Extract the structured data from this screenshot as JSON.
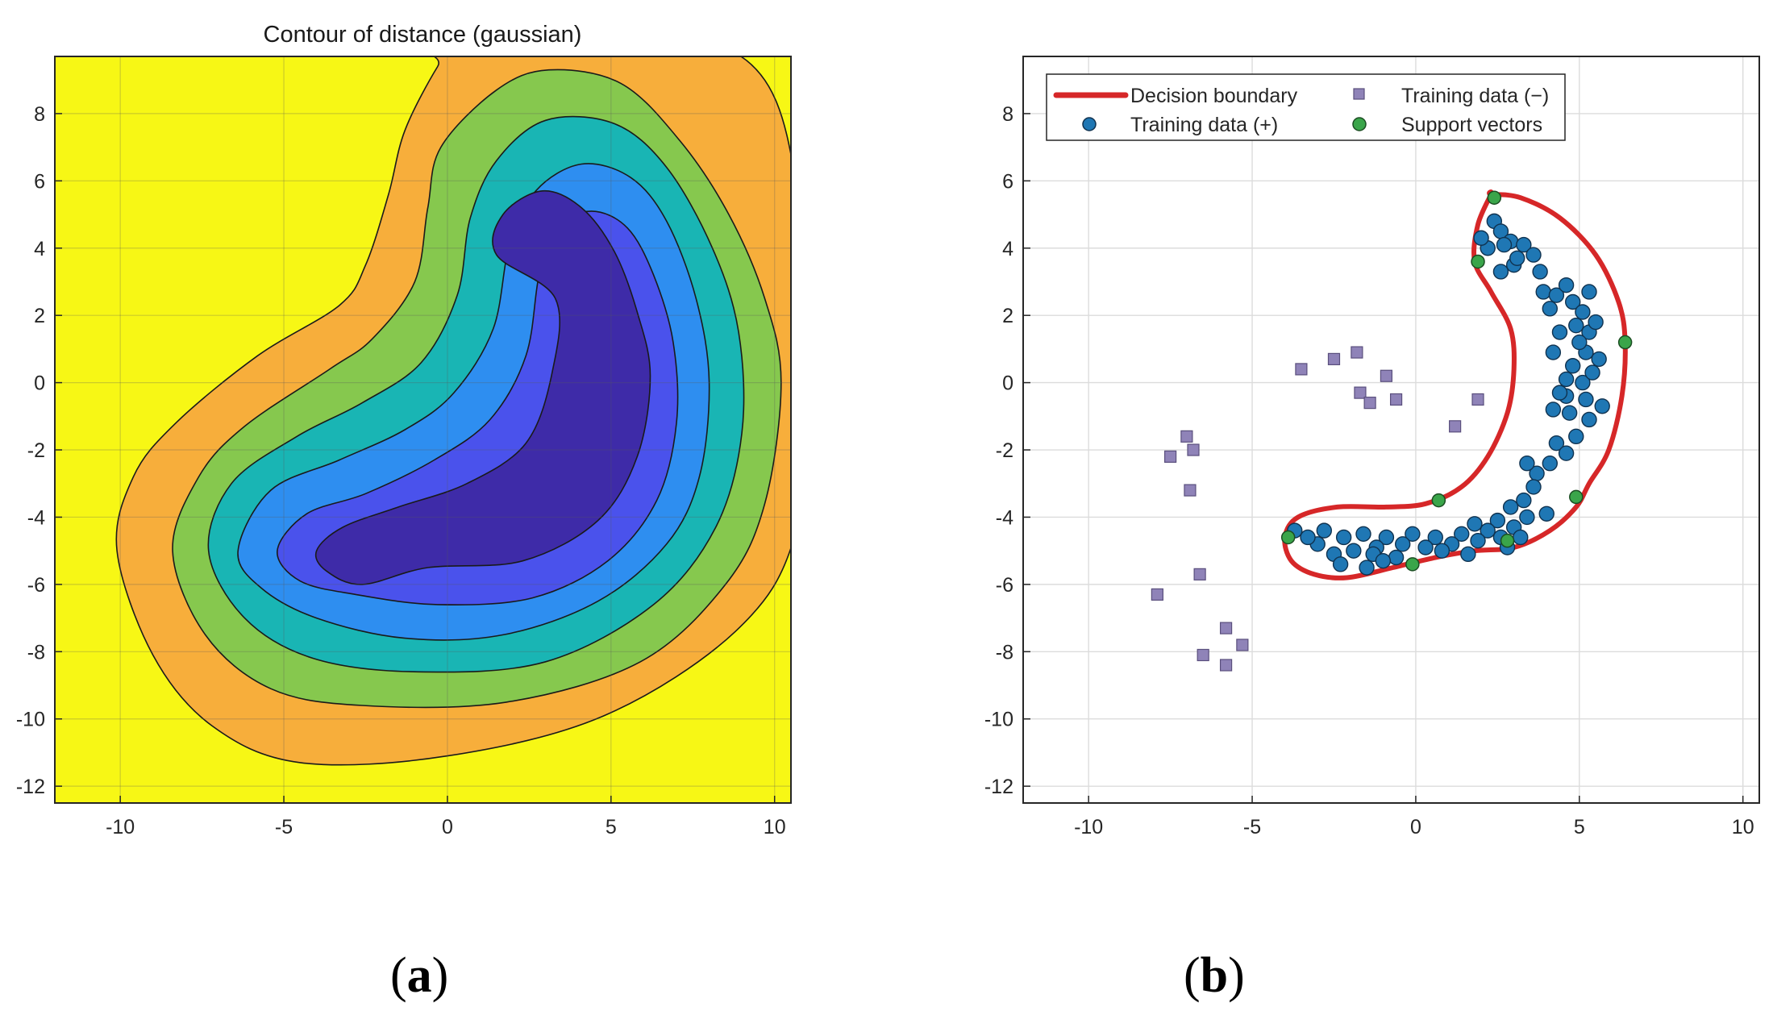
{
  "chart_data": [
    {
      "type": "contour",
      "panel": "(a)",
      "title": "Contour of distance (gaussian)",
      "xlim": [
        -12,
        10.5
      ],
      "ylim": [
        -12.5,
        9.7
      ],
      "xticks": [
        -10,
        -5,
        0,
        5,
        10
      ],
      "yticks": [
        8,
        6,
        4,
        2,
        0,
        -2,
        -4,
        -6,
        -8,
        -10,
        -12
      ],
      "grid": true,
      "level_colors": [
        "#f7f715",
        "#f7ae3b",
        "#86c84e",
        "#19b5b4",
        "#2e8ef0",
        "#4a52ec",
        "#3e2ba8"
      ],
      "levels": [
        {
          "level": 1,
          "points": [
            [
              -10.1,
              -5
            ],
            [
              -9.6,
              -2.8
            ],
            [
              -8.3,
              -1.2
            ],
            [
              -5.8,
              0.8
            ],
            [
              -3.3,
              2.3
            ],
            [
              -2.5,
              3.5
            ],
            [
              -1.8,
              5.6
            ],
            [
              -1.3,
              7.5
            ],
            [
              -0.3,
              9.4
            ],
            [
              0.2,
              9.9
            ],
            [
              8.6,
              9.9
            ],
            [
              10.8,
              5.3
            ],
            [
              11.0,
              0
            ],
            [
              10.6,
              -4.6
            ],
            [
              8.8,
              -7.4
            ],
            [
              4.8,
              -9.9
            ],
            [
              0,
              -11.1
            ],
            [
              -4.5,
              -11.3
            ],
            [
              -7.2,
              -10.2
            ],
            [
              -9,
              -8.1
            ]
          ]
        },
        {
          "level": 2,
          "points": [
            [
              -8.4,
              -5
            ],
            [
              -7.6,
              -2.8
            ],
            [
              -6.2,
              -1.3
            ],
            [
              -3.6,
              0.4
            ],
            [
              -2.3,
              1.3
            ],
            [
              -1.0,
              3.0
            ],
            [
              -0.6,
              5.2
            ],
            [
              -0.2,
              7.0
            ],
            [
              1.5,
              8.7
            ],
            [
              3.1,
              9.3
            ],
            [
              5.3,
              8.9
            ],
            [
              7.1,
              7.2
            ],
            [
              8.6,
              5.0
            ],
            [
              9.7,
              2.5
            ],
            [
              10.2,
              0
            ],
            [
              9.7,
              -3.6
            ],
            [
              8.5,
              -6
            ],
            [
              5.9,
              -8.3
            ],
            [
              1.8,
              -9.5
            ],
            [
              -2.6,
              -9.6
            ],
            [
              -5.4,
              -9.1
            ],
            [
              -7.4,
              -7.5
            ]
          ]
        },
        {
          "level": 3,
          "points": [
            [
              -7.3,
              -5
            ],
            [
              -6.6,
              -3.0
            ],
            [
              -4.6,
              -1.6
            ],
            [
              -2.6,
              -0.6
            ],
            [
              -0.8,
              0.6
            ],
            [
              0.3,
              2.6
            ],
            [
              0.7,
              4.9
            ],
            [
              1.5,
              6.6
            ],
            [
              3.0,
              7.8
            ],
            [
              5.1,
              7.7
            ],
            [
              6.7,
              6.4
            ],
            [
              8.1,
              4.0
            ],
            [
              8.9,
              1.5
            ],
            [
              9.0,
              -1.5
            ],
            [
              8.2,
              -4.3
            ],
            [
              6.3,
              -6.6
            ],
            [
              3.0,
              -8.3
            ],
            [
              -0.9,
              -8.6
            ],
            [
              -4.1,
              -8.2
            ],
            [
              -6.2,
              -7.0
            ]
          ]
        },
        {
          "level": 4,
          "points": [
            [
              -6.4,
              -5
            ],
            [
              -5.4,
              -3.2
            ],
            [
              -3.3,
              -2.3
            ],
            [
              -1.3,
              -1.4
            ],
            [
              0.2,
              -0.3
            ],
            [
              1.4,
              1.6
            ],
            [
              1.9,
              4.1
            ],
            [
              2.7,
              5.7
            ],
            [
              4.1,
              6.5
            ],
            [
              5.6,
              6.1
            ],
            [
              6.7,
              4.8
            ],
            [
              7.6,
              2.5
            ],
            [
              8.0,
              0
            ],
            [
              7.7,
              -2.8
            ],
            [
              6.7,
              -4.8
            ],
            [
              4.6,
              -6.5
            ],
            [
              1.7,
              -7.5
            ],
            [
              -1.3,
              -7.6
            ],
            [
              -4.0,
              -7.0
            ],
            [
              -5.7,
              -6.1
            ]
          ]
        },
        {
          "level": 5,
          "points": [
            [
              -5.2,
              -5
            ],
            [
              -4.3,
              -3.9
            ],
            [
              -2.5,
              -3.3
            ],
            [
              -0.4,
              -2.3
            ],
            [
              1.3,
              -1.1
            ],
            [
              2.4,
              0.8
            ],
            [
              2.8,
              3.2
            ],
            [
              3.3,
              4.6
            ],
            [
              4.4,
              5.1
            ],
            [
              5.5,
              4.6
            ],
            [
              6.3,
              3.2
            ],
            [
              6.9,
              1.2
            ],
            [
              7.0,
              -1.2
            ],
            [
              6.4,
              -3.5
            ],
            [
              4.9,
              -5.3
            ],
            [
              2.6,
              -6.4
            ],
            [
              -0.3,
              -6.6
            ],
            [
              -2.8,
              -6.3
            ],
            [
              -4.5,
              -5.9
            ]
          ]
        },
        {
          "level": 6,
          "points": [
            [
              -4.0,
              -5
            ],
            [
              -3.2,
              -4.3
            ],
            [
              -1.5,
              -3.7
            ],
            [
              0.6,
              -3.0
            ],
            [
              2.4,
              -1.8
            ],
            [
              3.2,
              0.3
            ],
            [
              3.3,
              2.5
            ],
            [
              1.5,
              3.8
            ],
            [
              1.7,
              5.0
            ],
            [
              2.9,
              5.7
            ],
            [
              4.1,
              5.2
            ],
            [
              5.1,
              3.9
            ],
            [
              5.8,
              2.1
            ],
            [
              6.2,
              0.2
            ],
            [
              5.8,
              -2.2
            ],
            [
              4.6,
              -4.1
            ],
            [
              2.3,
              -5.3
            ],
            [
              -0.6,
              -5.5
            ],
            [
              -2.6,
              -6.0
            ],
            [
              -3.7,
              -5.6
            ]
          ]
        }
      ]
    },
    {
      "type": "scatter",
      "panel": "(b)",
      "title": "",
      "xlim": [
        -12,
        10.5
      ],
      "ylim": [
        -12.5,
        9.7
      ],
      "xticks": [
        -10,
        -5,
        0,
        5,
        10
      ],
      "yticks": [
        8,
        6,
        4,
        2,
        0,
        -2,
        -4,
        -6,
        -8,
        -10,
        -12
      ],
      "grid": true,
      "legend_position": "top-left",
      "legend": [
        "Decision boundary",
        "Training data (−)",
        "Training data (+)",
        "Support vectors"
      ],
      "series": [
        {
          "name": "Training data (−)",
          "marker": "square",
          "color": "#8f83b8",
          "points": [
            [
              -3.5,
              0.4
            ],
            [
              -2.5,
              0.7
            ],
            [
              -1.8,
              0.9
            ],
            [
              -0.9,
              0.2
            ],
            [
              -1.7,
              -0.3
            ],
            [
              -1.4,
              -0.6
            ],
            [
              -0.6,
              -0.5
            ],
            [
              1.2,
              -1.3
            ],
            [
              1.9,
              -0.5
            ],
            [
              -7.0,
              -1.6
            ],
            [
              -7.5,
              -2.2
            ],
            [
              -6.8,
              -2.0
            ],
            [
              -6.9,
              -3.2
            ],
            [
              -6.6,
              -5.7
            ],
            [
              -7.9,
              -6.3
            ],
            [
              -5.8,
              -7.3
            ],
            [
              -6.5,
              -8.1
            ],
            [
              -5.3,
              -7.8
            ],
            [
              -5.8,
              -8.4
            ]
          ]
        },
        {
          "name": "Training data (+)",
          "marker": "circle",
          "color": "#1f77b4",
          "points": [
            [
              2.4,
              4.8
            ],
            [
              2.6,
              4.5
            ],
            [
              2.9,
              4.2
            ],
            [
              2.2,
              4.0
            ],
            [
              3.3,
              4.1
            ],
            [
              3.6,
              3.8
            ],
            [
              3.0,
              3.5
            ],
            [
              2.6,
              3.3
            ],
            [
              3.8,
              3.3
            ],
            [
              3.9,
              2.7
            ],
            [
              4.3,
              2.6
            ],
            [
              4.1,
              2.2
            ],
            [
              4.8,
              2.4
            ],
            [
              5.1,
              2.1
            ],
            [
              4.9,
              1.7
            ],
            [
              4.4,
              1.5
            ],
            [
              5.3,
              1.5
            ],
            [
              4.2,
              0.9
            ],
            [
              5.2,
              0.9
            ],
            [
              4.8,
              0.5
            ],
            [
              5.6,
              0.7
            ],
            [
              4.6,
              0.1
            ],
            [
              5.1,
              0.0
            ],
            [
              5.4,
              0.3
            ],
            [
              4.6,
              -0.4
            ],
            [
              5.2,
              -0.5
            ],
            [
              5.7,
              -0.7
            ],
            [
              4.7,
              -0.9
            ],
            [
              4.2,
              -0.8
            ],
            [
              5.3,
              -1.1
            ],
            [
              4.9,
              -1.6
            ],
            [
              4.3,
              -1.8
            ],
            [
              4.6,
              -2.1
            ],
            [
              4.1,
              -2.4
            ],
            [
              3.7,
              -2.7
            ],
            [
              3.6,
              -3.1
            ],
            [
              3.3,
              -3.5
            ],
            [
              2.9,
              -3.7
            ],
            [
              3.4,
              -4.0
            ],
            [
              2.5,
              -4.1
            ],
            [
              3.0,
              -4.3
            ],
            [
              2.2,
              -4.4
            ],
            [
              1.8,
              -4.2
            ],
            [
              2.6,
              -4.6
            ],
            [
              1.9,
              -4.7
            ],
            [
              1.4,
              -4.5
            ],
            [
              1.1,
              -4.8
            ],
            [
              0.6,
              -4.6
            ],
            [
              0.3,
              -4.9
            ],
            [
              -0.1,
              -4.5
            ],
            [
              -0.4,
              -4.8
            ],
            [
              -0.6,
              -5.2
            ],
            [
              -0.9,
              -4.6
            ],
            [
              -1.2,
              -4.9
            ],
            [
              -1.6,
              -4.5
            ],
            [
              -1.3,
              -5.1
            ],
            [
              -1.5,
              -5.5
            ],
            [
              -1.9,
              -5.0
            ],
            [
              -2.2,
              -4.6
            ],
            [
              -2.5,
              -5.1
            ],
            [
              -2.8,
              -4.4
            ],
            [
              -2.3,
              -5.4
            ],
            [
              -3.0,
              -4.8
            ],
            [
              -3.3,
              -4.6
            ],
            [
              -3.7,
              -4.4
            ],
            [
              -1.0,
              -5.3
            ],
            [
              0.8,
              -5.0
            ],
            [
              1.6,
              -5.1
            ],
            [
              2.8,
              -4.9
            ],
            [
              3.2,
              -4.6
            ],
            [
              4.0,
              -3.9
            ],
            [
              3.4,
              -2.4
            ],
            [
              5.5,
              1.8
            ],
            [
              5.3,
              2.7
            ],
            [
              2.7,
              4.1
            ],
            [
              2.0,
              4.3
            ],
            [
              3.1,
              3.7
            ],
            [
              4.6,
              2.9
            ],
            [
              5.0,
              1.2
            ],
            [
              4.4,
              -0.3
            ]
          ]
        },
        {
          "name": "Support vectors",
          "marker": "circle",
          "color": "#3aa54a",
          "points": [
            [
              2.4,
              5.5
            ],
            [
              1.9,
              3.6
            ],
            [
              6.4,
              1.2
            ],
            [
              4.9,
              -3.4
            ],
            [
              0.7,
              -3.5
            ],
            [
              -3.9,
              -4.6
            ],
            [
              -0.1,
              -5.4
            ],
            [
              2.8,
              -4.7
            ]
          ]
        }
      ],
      "boundary": {
        "name": "Decision boundary",
        "color": "#d62728",
        "points": [
          [
            2.3,
            5.6
          ],
          [
            3.2,
            5.5
          ],
          [
            4.4,
            4.9
          ],
          [
            5.5,
            3.8
          ],
          [
            6.2,
            2.4
          ],
          [
            6.4,
            1.2
          ],
          [
            6.3,
            -0.4
          ],
          [
            5.9,
            -2.0
          ],
          [
            5.3,
            -3.0
          ],
          [
            4.9,
            -3.7
          ],
          [
            4.1,
            -4.4
          ],
          [
            3.0,
            -4.9
          ],
          [
            1.8,
            -5.0
          ],
          [
            0.6,
            -5.2
          ],
          [
            -0.7,
            -5.5
          ],
          [
            -2.1,
            -5.8
          ],
          [
            -3.1,
            -5.7
          ],
          [
            -3.8,
            -5.3
          ],
          [
            -4.0,
            -4.6
          ],
          [
            -3.6,
            -4.0
          ],
          [
            -2.4,
            -3.7
          ],
          [
            -0.9,
            -3.7
          ],
          [
            0.3,
            -3.6
          ],
          [
            1.4,
            -3.1
          ],
          [
            2.2,
            -2.2
          ],
          [
            2.8,
            -0.9
          ],
          [
            3.0,
            0.4
          ],
          [
            2.9,
            1.6
          ],
          [
            2.3,
            2.7
          ],
          [
            1.8,
            3.6
          ],
          [
            1.9,
            4.7
          ],
          [
            2.3,
            5.6
          ]
        ]
      }
    }
  ],
  "panel_labels": {
    "a_open": "(",
    "a_letter": "a",
    "a_close": ")",
    "b_open": "(",
    "b_letter": "b",
    "b_close": ")"
  }
}
